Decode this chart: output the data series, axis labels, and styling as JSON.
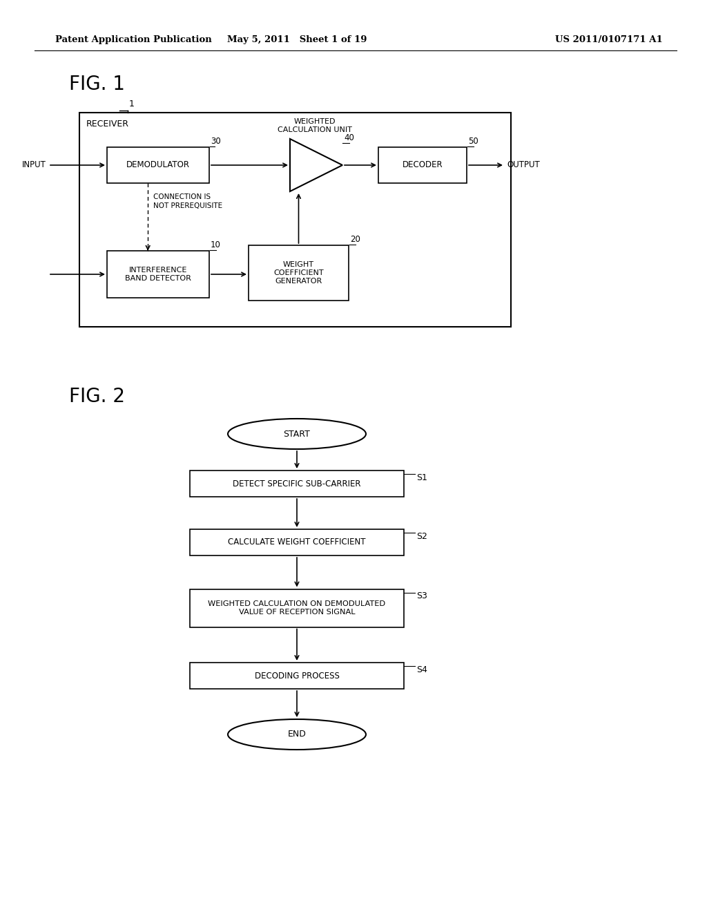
{
  "bg_color": "#ffffff",
  "header_left": "Patent Application Publication",
  "header_mid": "May 5, 2011   Sheet 1 of 19",
  "header_right": "US 2011/0107171 A1",
  "fig1_label": "FIG. 1",
  "fig2_label": "FIG. 2",
  "receiver_label": "RECEIVER",
  "block_labels": {
    "demodulator": "DEMODULATOR",
    "interference": "INTERFERENCE\nBAND DETECTOR",
    "weight": "WEIGHT\nCOEFFICIENT\nGENERATOR",
    "decoder": "DECODER",
    "weighted_unit_label": "WEIGHTED\nCALCULATION UNIT"
  },
  "ref_numbers": {
    "receiver": "1",
    "demodulator": "30",
    "interference": "10",
    "weight": "20",
    "decoder": "50",
    "weighted": "40"
  },
  "connection_note": "CONNECTION IS\nNOT PREREQUISITE",
  "io_labels": {
    "input": "INPUT",
    "output": "OUTPUT"
  },
  "flowchart_labels": {
    "start": "START",
    "s1": "DETECT SPECIFIC SUB-CARRIER",
    "s2": "CALCULATE WEIGHT COEFFICIENT",
    "s3": "WEIGHTED CALCULATION ON DEMODULATED\nVALUE OF RECEPTION SIGNAL",
    "s4": "DECODING PROCESS",
    "end": "END"
  }
}
